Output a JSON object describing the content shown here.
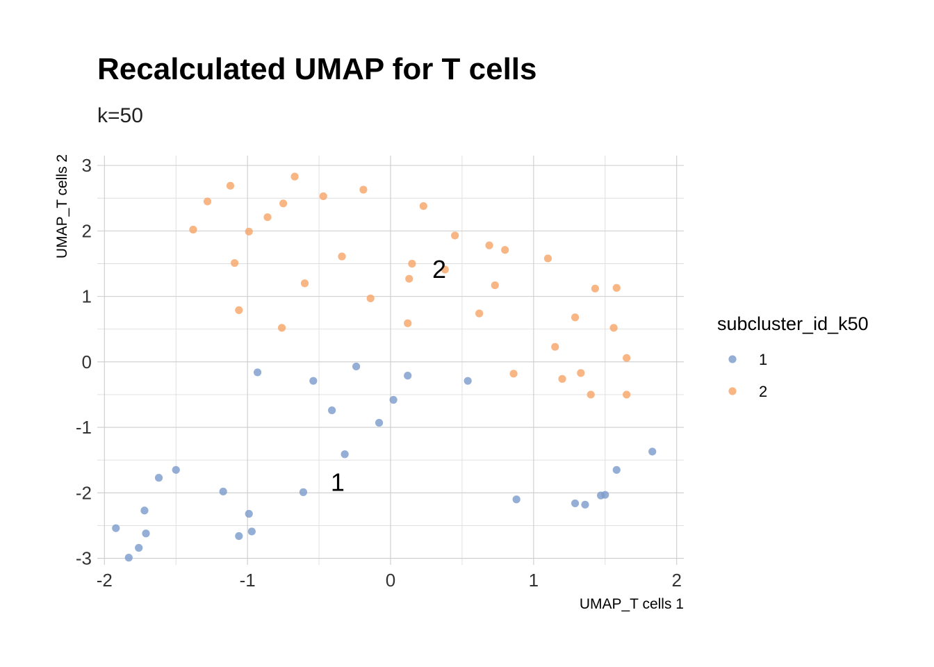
{
  "chart_data": {
    "type": "scatter",
    "title": "Recalculated UMAP for T cells",
    "subtitle": "k=50",
    "xlabel": "UMAP_T cells 1",
    "ylabel": "UMAP_T cells 2",
    "xlim": [
      -2.05,
      2.05
    ],
    "ylim": [
      -3.1,
      3.15
    ],
    "xticks": [
      -2,
      -1,
      0,
      1,
      2
    ],
    "yticks": [
      -3,
      -2,
      -1,
      0,
      1,
      2,
      3
    ],
    "xtick_labels": [
      "-2",
      "-1",
      "0",
      "1",
      "2"
    ],
    "ytick_labels": [
      "-3",
      "-2",
      "-1",
      "0",
      "1",
      "2",
      "3"
    ],
    "grid": true,
    "legend": {
      "title": "subcluster_id_k50",
      "placement": "right"
    },
    "series": [
      {
        "name": "1",
        "color": "#7b9acc",
        "x": [
          -0.93,
          -0.54,
          -0.24,
          0.12,
          0.54,
          -0.41,
          0.02,
          -0.08,
          -0.32,
          -1.5,
          -1.62,
          -1.17,
          -0.61,
          -1.72,
          -1.92,
          -1.71,
          -0.99,
          -0.97,
          -1.06,
          -1.76,
          -1.83,
          0.88,
          1.29,
          1.36,
          1.47,
          1.5,
          1.58,
          1.83
        ],
        "y": [
          -0.16,
          -0.29,
          -0.07,
          -0.21,
          -0.29,
          -0.74,
          -0.58,
          -0.93,
          -1.41,
          -1.65,
          -1.77,
          -1.98,
          -1.99,
          -2.27,
          -2.54,
          -2.62,
          -2.32,
          -2.59,
          -2.66,
          -2.84,
          -2.99,
          -2.1,
          -2.16,
          -2.18,
          -2.04,
          -2.03,
          -1.65,
          -1.37
        ]
      },
      {
        "name": "2",
        "color": "#f7a466",
        "x": [
          -0.67,
          -1.12,
          -0.47,
          -0.19,
          -1.28,
          -0.75,
          -1.38,
          -0.86,
          -0.99,
          0.23,
          0.45,
          -0.34,
          0.69,
          0.8,
          1.1,
          -1.09,
          0.15,
          0.38,
          -0.6,
          0.13,
          0.73,
          -0.14,
          -1.06,
          0.62,
          0.12,
          -0.76,
          1.43,
          1.58,
          1.29,
          1.56,
          1.15,
          1.65,
          0.86,
          1.2,
          1.33,
          1.4,
          1.65
        ],
        "y": [
          2.83,
          2.69,
          2.53,
          2.63,
          2.45,
          2.42,
          2.02,
          2.21,
          1.99,
          2.38,
          1.93,
          1.61,
          1.78,
          1.71,
          1.58,
          1.51,
          1.5,
          1.41,
          1.2,
          1.27,
          1.17,
          0.97,
          0.79,
          0.74,
          0.59,
          0.52,
          1.12,
          1.13,
          0.68,
          0.52,
          0.23,
          0.06,
          -0.18,
          -0.26,
          -0.17,
          -0.5,
          -0.5
        ]
      }
    ],
    "cluster_labels": [
      {
        "text": "1",
        "x": -0.37,
        "y": -1.83
      },
      {
        "text": "2",
        "x": 0.34,
        "y": 1.42
      }
    ]
  }
}
